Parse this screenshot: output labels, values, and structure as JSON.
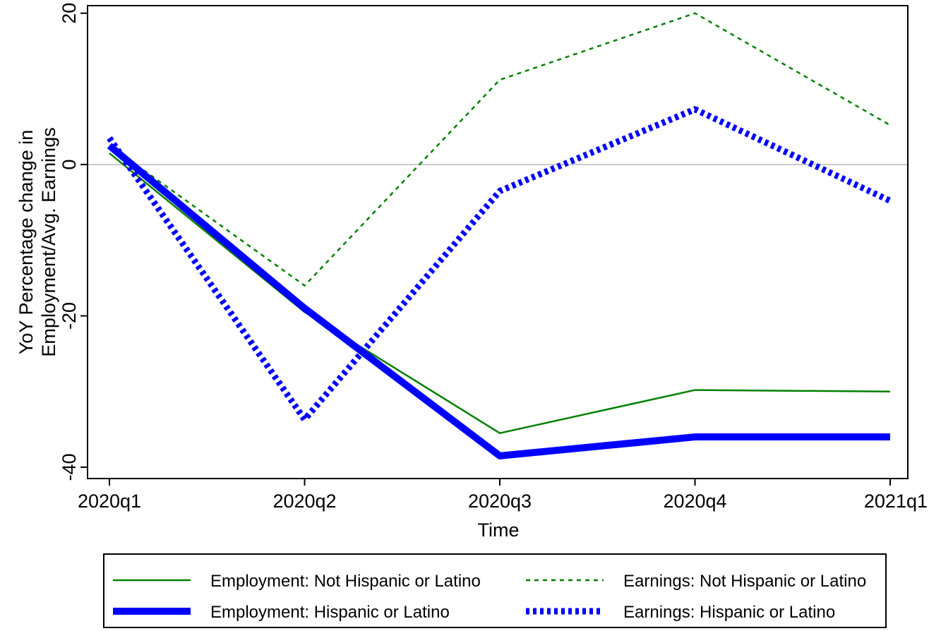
{
  "chart_data": {
    "type": "line",
    "title": "",
    "xlabel": "Time",
    "ylabel_line1": "YoY Percentage change in",
    "ylabel_line2": "Employment/Avg. Earnings",
    "categories": [
      "2020q1",
      "2020q2",
      "2020q3",
      "2020q4",
      "2021q1"
    ],
    "yticks": [
      -40,
      -20,
      0,
      20
    ],
    "ylim": [
      -41.5,
      21
    ],
    "reference_line": 0,
    "legend_position": "bottom",
    "series": [
      {
        "name": "Employment: Not Hispanic or Latino",
        "values": [
          1.5,
          -19.5,
          -35.5,
          -29.8,
          -30.0
        ],
        "color": "#008000",
        "style": "solid-thin"
      },
      {
        "name": "Earnings: Not Hispanic or Latino",
        "values": [
          2.5,
          -16.0,
          11.2,
          20.0,
          5.2
        ],
        "color": "#008000",
        "style": "dashed-thin"
      },
      {
        "name": "Employment: Hispanic or Latino",
        "values": [
          2.5,
          -19.0,
          -38.5,
          -36.0,
          -36.0
        ],
        "color": "#0000ff",
        "style": "solid-thick"
      },
      {
        "name": "Earnings: Hispanic or Latino",
        "values": [
          3.5,
          -33.7,
          -3.5,
          7.3,
          -4.8
        ],
        "color": "#0000ff",
        "style": "dotted-thick"
      }
    ]
  }
}
